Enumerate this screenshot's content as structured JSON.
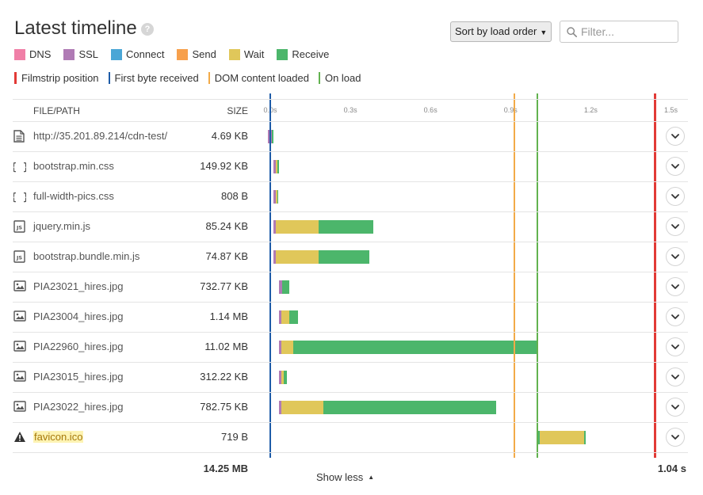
{
  "header": {
    "title": "Latest timeline",
    "help_icon": "question-circle-icon",
    "sort_label": "Sort by load order",
    "filter_placeholder": "Filter..."
  },
  "legend": {
    "phases": [
      {
        "label": "DNS",
        "color": "#f07fa7"
      },
      {
        "label": "SSL",
        "color": "#b07bb5"
      },
      {
        "label": "Connect",
        "color": "#4aa6d6"
      },
      {
        "label": "Send",
        "color": "#f7a04c"
      },
      {
        "label": "Wait",
        "color": "#e0c75a"
      },
      {
        "label": "Receive",
        "color": "#4cb66b"
      }
    ],
    "markers": [
      {
        "label": "Filmstrip position",
        "color": "#e23a36"
      },
      {
        "label": "First byte received",
        "color": "#1e5ca8"
      },
      {
        "label": "DOM content loaded",
        "color": "#f2aa48"
      },
      {
        "label": "On load",
        "color": "#62b24f"
      }
    ]
  },
  "table": {
    "columns": {
      "path": "FILE/PATH",
      "size": "SIZE"
    },
    "ticks": [
      "0.0s",
      "0.3s",
      "0.6s",
      "0.9s",
      "1.2s",
      "1.5s"
    ],
    "rows": [
      {
        "icon": "document-icon",
        "path": "http://35.201.89.214/cdn-test/",
        "size": "4.69 KB",
        "warn": false,
        "segments": [
          {
            "phase": "SSL",
            "start": -0.008,
            "end": 0.005
          },
          {
            "phase": "Receive",
            "start": 0.005,
            "end": 0.012
          }
        ]
      },
      {
        "icon": "css-braces-icon",
        "path": "bootstrap.min.css",
        "size": "149.92 KB",
        "warn": false,
        "segments": [
          {
            "phase": "SSL",
            "start": 0.012,
            "end": 0.02
          },
          {
            "phase": "Wait",
            "start": 0.02,
            "end": 0.027
          },
          {
            "phase": "Receive",
            "start": 0.027,
            "end": 0.034
          }
        ]
      },
      {
        "icon": "css-braces-icon",
        "path": "full-width-pics.css",
        "size": "808 B",
        "warn": false,
        "segments": [
          {
            "phase": "SSL",
            "start": 0.012,
            "end": 0.02
          },
          {
            "phase": "Wait",
            "start": 0.02,
            "end": 0.026
          },
          {
            "phase": "Receive",
            "start": 0.026,
            "end": 0.03
          }
        ]
      },
      {
        "icon": "js-file-icon",
        "path": "jquery.min.js",
        "size": "85.24 KB",
        "warn": false,
        "segments": [
          {
            "phase": "SSL",
            "start": 0.012,
            "end": 0.022
          },
          {
            "phase": "Wait",
            "start": 0.022,
            "end": 0.18
          },
          {
            "phase": "Receive",
            "start": 0.18,
            "end": 0.385
          }
        ]
      },
      {
        "icon": "js-file-icon",
        "path": "bootstrap.bundle.min.js",
        "size": "74.87 KB",
        "warn": false,
        "segments": [
          {
            "phase": "SSL",
            "start": 0.012,
            "end": 0.022
          },
          {
            "phase": "Wait",
            "start": 0.022,
            "end": 0.18
          },
          {
            "phase": "Receive",
            "start": 0.18,
            "end": 0.37
          }
        ]
      },
      {
        "icon": "image-file-icon",
        "path": "PIA23021_hires.jpg",
        "size": "732.77 KB",
        "warn": false,
        "segments": [
          {
            "phase": "SSL",
            "start": 0.033,
            "end": 0.045
          },
          {
            "phase": "Receive",
            "start": 0.045,
            "end": 0.07
          }
        ]
      },
      {
        "icon": "image-file-icon",
        "path": "PIA23004_hires.jpg",
        "size": "1.14 MB",
        "warn": false,
        "segments": [
          {
            "phase": "SSL",
            "start": 0.033,
            "end": 0.043
          },
          {
            "phase": "Wait",
            "start": 0.043,
            "end": 0.072
          },
          {
            "phase": "Receive",
            "start": 0.072,
            "end": 0.103
          }
        ]
      },
      {
        "icon": "image-file-icon",
        "path": "PIA22960_hires.jpg",
        "size": "11.02 MB",
        "warn": false,
        "segments": [
          {
            "phase": "SSL",
            "start": 0.033,
            "end": 0.043
          },
          {
            "phase": "Wait",
            "start": 0.043,
            "end": 0.085
          },
          {
            "phase": "Receive",
            "start": 0.085,
            "end": 1.0
          }
        ]
      },
      {
        "icon": "image-file-icon",
        "path": "PIA23015_hires.jpg",
        "size": "312.22 KB",
        "warn": false,
        "segments": [
          {
            "phase": "SSL",
            "start": 0.033,
            "end": 0.043
          },
          {
            "phase": "Wait",
            "start": 0.043,
            "end": 0.05
          },
          {
            "phase": "Receive",
            "start": 0.05,
            "end": 0.063
          }
        ]
      },
      {
        "icon": "image-file-icon",
        "path": "PIA23022_hires.jpg",
        "size": "782.75 KB",
        "warn": false,
        "segments": [
          {
            "phase": "SSL",
            "start": 0.033,
            "end": 0.043
          },
          {
            "phase": "Wait",
            "start": 0.043,
            "end": 0.2
          },
          {
            "phase": "Receive",
            "start": 0.2,
            "end": 0.845
          }
        ]
      },
      {
        "icon": "warning-icon",
        "path": "favicon.ico",
        "size": "719 B",
        "warn": true,
        "segments": [
          {
            "phase": "Receive",
            "start": 1.0,
            "end": 1.01
          },
          {
            "phase": "Wait",
            "start": 1.01,
            "end": 1.175
          },
          {
            "phase": "Receive",
            "start": 1.175,
            "end": 1.18
          }
        ]
      }
    ]
  },
  "markers_s": {
    "First byte received": 0.0,
    "DOM content loaded": 0.913,
    "On load": 1.0,
    "Filmstrip position": 1.44
  },
  "totals": {
    "size": "14.25 MB",
    "time": "1.04 s"
  },
  "footer": {
    "show_less": "Show less"
  }
}
